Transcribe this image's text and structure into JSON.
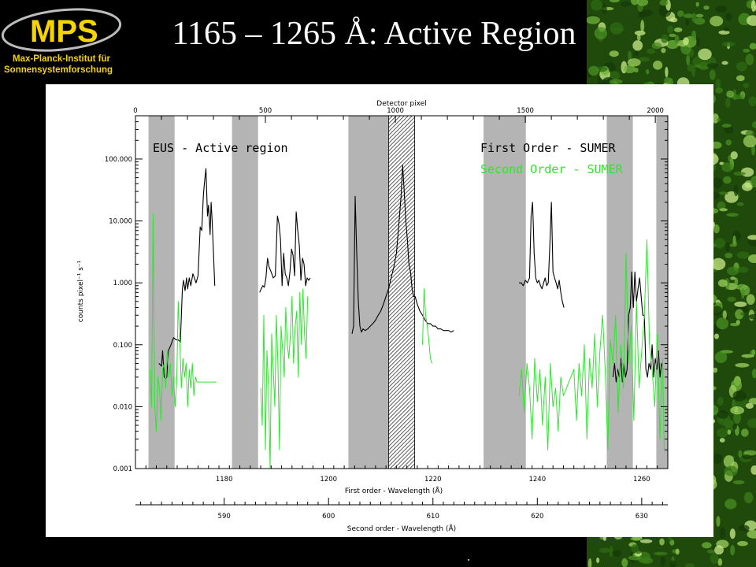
{
  "slide": {
    "title": "1165 – 1265 Å: Active Region",
    "logo_text": "MPS",
    "institute_line1": "Max-Planck-Institut für",
    "institute_line2": "Sonnensystemforschung",
    "colors": {
      "background": "#000000",
      "title": "#ffffff",
      "logo_yellow": "#f6d400",
      "sun_texture": "#3a7a16"
    }
  },
  "chart_data": {
    "type": "line",
    "title": "",
    "panel_label": "EUS - Active region",
    "top_axis": {
      "label": "Detector pixel",
      "range": [
        0,
        2048
      ],
      "ticks": [
        0,
        500,
        1000,
        1500,
        2000
      ]
    },
    "bottom_axis_first": {
      "label": "First order - Wavelength (Å)",
      "range": [
        1163,
        1265
      ],
      "ticks": [
        1180,
        1200,
        1220,
        1240,
        1260
      ],
      "minor_step": 2
    },
    "bottom_axis_second": {
      "label": "Second order - Wavelength (Å)",
      "range": [
        581.5,
        632.5
      ],
      "ticks": [
        590,
        600,
        610,
        620,
        630
      ],
      "minor_step": 1
    },
    "y_axis": {
      "label": "counts pixel⁻¹ s⁻¹",
      "scale": "log",
      "range": [
        0.001,
        500
      ],
      "ticks": [
        0.001,
        0.01,
        0.1,
        1,
        10,
        100
      ],
      "tick_labels": [
        "0.001",
        "0.010",
        "0.100",
        "1.000",
        "10.000",
        "100.000"
      ]
    },
    "shaded_bands": [
      [
        1165.5,
        1170.5
      ],
      [
        1181.5,
        1186.5
      ],
      [
        1203.8,
        1213.8
      ],
      [
        1229.7,
        1237.8
      ],
      [
        1253.3,
        1258.3
      ],
      [
        1262.8,
        1267.8
      ]
    ],
    "hatched_band": [
      1211.5,
      1216.5
    ],
    "series": [
      {
        "name": "First  Order - SUMER",
        "color": "#000000",
        "x": [
          1167.5,
          1168,
          1168.2,
          1168.5,
          1168.8,
          1169,
          1169.3,
          1169.8,
          1170.3,
          1170.8,
          1171.2,
          1171.6,
          1172,
          1172.2,
          1172.5,
          1172.8,
          1173,
          1173.3,
          1173.6,
          1174,
          1174.3,
          1174.6,
          1175,
          1175.4,
          1175.7,
          1176,
          1176.2,
          1176.5,
          1176.8,
          1177,
          1177.3,
          1177.5,
          1177.7,
          1177.9,
          1178.2,
          1186.8,
          1187.1,
          1187.4,
          1187.7,
          1188,
          1188.3,
          1188.6,
          1189,
          1189.4,
          1189.8,
          1190.2,
          1190.5,
          1190.8,
          1191.1,
          1191.4,
          1191.7,
          1192,
          1192.3,
          1192.6,
          1192.9,
          1193.2,
          1193.5,
          1193.8,
          1194.1,
          1194.4,
          1194.7,
          1195,
          1195.3,
          1195.6,
          1195.9,
          1196.2,
          1196.5,
          1204.5,
          1204.8,
          1205.1,
          1205.4,
          1205.7,
          1206,
          1206.3,
          1206.6,
          1207,
          1207.5,
          1208,
          1208.5,
          1209,
          1209.5,
          1210,
          1210.5,
          1211,
          1211.5,
          1212,
          1212.5,
          1213,
          1213.3,
          1213.6,
          1213.9,
          1214.2,
          1214.5,
          1214.8,
          1215.1,
          1215.4,
          1215.7,
          1216,
          1216.3,
          1216.6,
          1217,
          1217.5,
          1218,
          1218.5,
          1219,
          1219.5,
          1220,
          1220.5,
          1221,
          1221.5,
          1222,
          1222.5,
          1223,
          1223.5,
          1224,
          1236.5,
          1236.9,
          1237.3,
          1237.7,
          1238.1,
          1238.5,
          1238.8,
          1239.1,
          1239.4,
          1239.7,
          1240,
          1240.3,
          1240.6,
          1240.9,
          1241.2,
          1241.5,
          1241.8,
          1242.1,
          1242.4,
          1242.7,
          1243,
          1243.3,
          1243.6,
          1243.9,
          1244.2,
          1244.5,
          1244.8,
          1245.1,
          1254.5,
          1254.8,
          1255.1,
          1255.4,
          1255.7,
          1256,
          1256.3,
          1256.6,
          1256.9,
          1257.2,
          1257.5,
          1257.8,
          1258.1,
          1258.4,
          1258.7,
          1259,
          1259.3,
          1259.6,
          1259.9,
          1260.2,
          1260.5,
          1260.8,
          1261.1,
          1261.4,
          1261.7,
          1262,
          1262.3,
          1262.6,
          1262.9,
          1263.2,
          1263.5,
          1263.8,
          1264.1
        ],
        "y": [
          0.05,
          0.045,
          0.08,
          0.03,
          0.028,
          0.03,
          0.08,
          0.1,
          0.13,
          0.12,
          0.12,
          0.11,
          0.8,
          1.1,
          0.75,
          1.2,
          0.8,
          1.2,
          0.9,
          1.4,
          1.2,
          1.0,
          1.3,
          8,
          7,
          25,
          40,
          70,
          12,
          18,
          6,
          20,
          10,
          4,
          0.9,
          0.7,
          0.8,
          0.9,
          0.85,
          1.2,
          2.5,
          1.8,
          1.5,
          1.2,
          1.3,
          12,
          9,
          5,
          0.9,
          3,
          1.4,
          1.2,
          0.9,
          1.5,
          3.5,
          2.8,
          1.3,
          14,
          7,
          4,
          1.1,
          2.5,
          2.0,
          0.9,
          1.2,
          1.1,
          1.2,
          0.15,
          0.2,
          25,
          3,
          0.5,
          0.2,
          0.16,
          0.18,
          0.17,
          0.18,
          0.2,
          0.22,
          0.25,
          0.3,
          0.35,
          0.45,
          0.6,
          0.8,
          1.2,
          1.8,
          3,
          6,
          12,
          25,
          80,
          30,
          10,
          5,
          2,
          1.5,
          0.8,
          0.6,
          0.6,
          0.45,
          0.35,
          0.3,
          0.25,
          0.22,
          0.22,
          0.2,
          0.2,
          0.18,
          0.18,
          0.17,
          0.17,
          0.17,
          0.16,
          0.17,
          1.0,
          1.0,
          0.9,
          1.1,
          1.0,
          1.2,
          12,
          20,
          3,
          1.2,
          1.0,
          1.1,
          0.9,
          0.8,
          1.0,
          1.2,
          0.9,
          1.0,
          4,
          20,
          1.5,
          1.2,
          1.0,
          0.8,
          1.1,
          0.7,
          0.5,
          0.4,
          0.03,
          0.05,
          0.025,
          0.04,
          0.03,
          0.06,
          0.025,
          0.05,
          0.03,
          0.04,
          0.3,
          0.4,
          1.5,
          0.4,
          1.5,
          0.5,
          0.8,
          1.2,
          0.6,
          0.3,
          0.3,
          0.04,
          0.03,
          0.05,
          0.04,
          0.1,
          0.03,
          0.06,
          0.04,
          0.08,
          0.03,
          0.05,
          0.04
        ]
      },
      {
        "name": "Second Order - SUMER",
        "color": "#2ee62e",
        "x": [
          1165.8,
          1166.1,
          1166.4,
          1166.7,
          1167,
          1167.3,
          1167.6,
          1167.9,
          1168.2,
          1168.5,
          1168.8,
          1169.1,
          1169.4,
          1169.7,
          1170,
          1170.3,
          1170.6,
          1170.9,
          1171.2,
          1171.5,
          1171.8,
          1172.1,
          1172.4,
          1172.7,
          1173,
          1173.3,
          1173.6,
          1173.9,
          1174.2,
          1174.5,
          1174.8,
          1175.1,
          1175.4,
          1175.7,
          1176,
          1176.3,
          1176.6,
          1176.9,
          1177.2,
          1178.5,
          1187,
          1187.3,
          1187.6,
          1187.9,
          1188.2,
          1188.5,
          1188.8,
          1189.1,
          1189.4,
          1189.7,
          1190,
          1190.3,
          1190.6,
          1190.9,
          1191.2,
          1191.5,
          1191.8,
          1192.1,
          1192.4,
          1192.7,
          1193,
          1193.3,
          1193.6,
          1193.9,
          1194.2,
          1194.5,
          1194.8,
          1195.1,
          1195.4,
          1195.7,
          1196,
          1218,
          1218.3,
          1218.6,
          1218.9,
          1219.2,
          1219.5,
          1219.8,
          1236.5,
          1237,
          1237.5,
          1238,
          1238.5,
          1239,
          1239.5,
          1240,
          1240.5,
          1241,
          1241.5,
          1242,
          1242.5,
          1243,
          1243.5,
          1244,
          1244.5,
          1245,
          1247,
          1247.5,
          1248,
          1248.5,
          1249,
          1249.5,
          1250,
          1250.5,
          1251,
          1251.5,
          1252,
          1252.5,
          1253,
          1253.5,
          1254,
          1254.5,
          1255,
          1255.5,
          1256,
          1256.5,
          1257,
          1257.5,
          1258,
          1258.5,
          1259,
          1259.5,
          1260,
          1260.5,
          1261,
          1261.5,
          1262,
          1262.5,
          1263,
          1263.5,
          1264,
          1264.3
        ],
        "y": [
          0.04,
          0.01,
          13,
          0.01,
          0.004,
          0.03,
          0.02,
          0.006,
          0.04,
          0.05,
          0.02,
          0.08,
          0.03,
          0.05,
          0.015,
          0.03,
          0.01,
          0.025,
          0.5,
          0.12,
          0.02,
          0.06,
          0.03,
          0.05,
          0.01,
          0.04,
          0.02,
          0.05,
          0.015,
          0.03,
          0.025,
          0.025,
          0.025,
          0.025,
          0.025,
          0.025,
          0.025,
          0.025,
          0.025,
          0.025,
          0.02,
          0.005,
          0.3,
          0.002,
          0.08,
          0.02,
          0.001,
          0.15,
          0.04,
          0.01,
          0.3,
          0.05,
          0.002,
          0.2,
          0.08,
          0.03,
          0.4,
          0.1,
          0.06,
          0.15,
          0.6,
          0.05,
          0.2,
          0.35,
          0.03,
          0.7,
          0.1,
          0.8,
          0.15,
          0.06,
          0.6,
          0.1,
          0.8,
          0.3,
          0.2,
          0.12,
          0.06,
          0.05,
          0.015,
          0.04,
          0.008,
          0.05,
          0.02,
          0.003,
          0.06,
          0.012,
          0.04,
          0.005,
          0.03,
          0.002,
          0.05,
          0.01,
          0.02,
          0.004,
          0.03,
          0.015,
          0.04,
          0.006,
          0.05,
          0.015,
          0.1,
          0.003,
          0.06,
          0.02,
          0.15,
          0.01,
          0.08,
          0.3,
          0.04,
          0.002,
          0.12,
          0.05,
          0.3,
          0.008,
          0.1,
          0.02,
          3,
          0.05,
          0.2,
          0.006,
          0.5,
          0.02,
          0.08,
          0.3,
          5,
          0.1,
          0.04,
          0.01,
          0.15,
          0.003,
          0.06,
          0.002
        ]
      }
    ],
    "legend_position": "top-right"
  }
}
